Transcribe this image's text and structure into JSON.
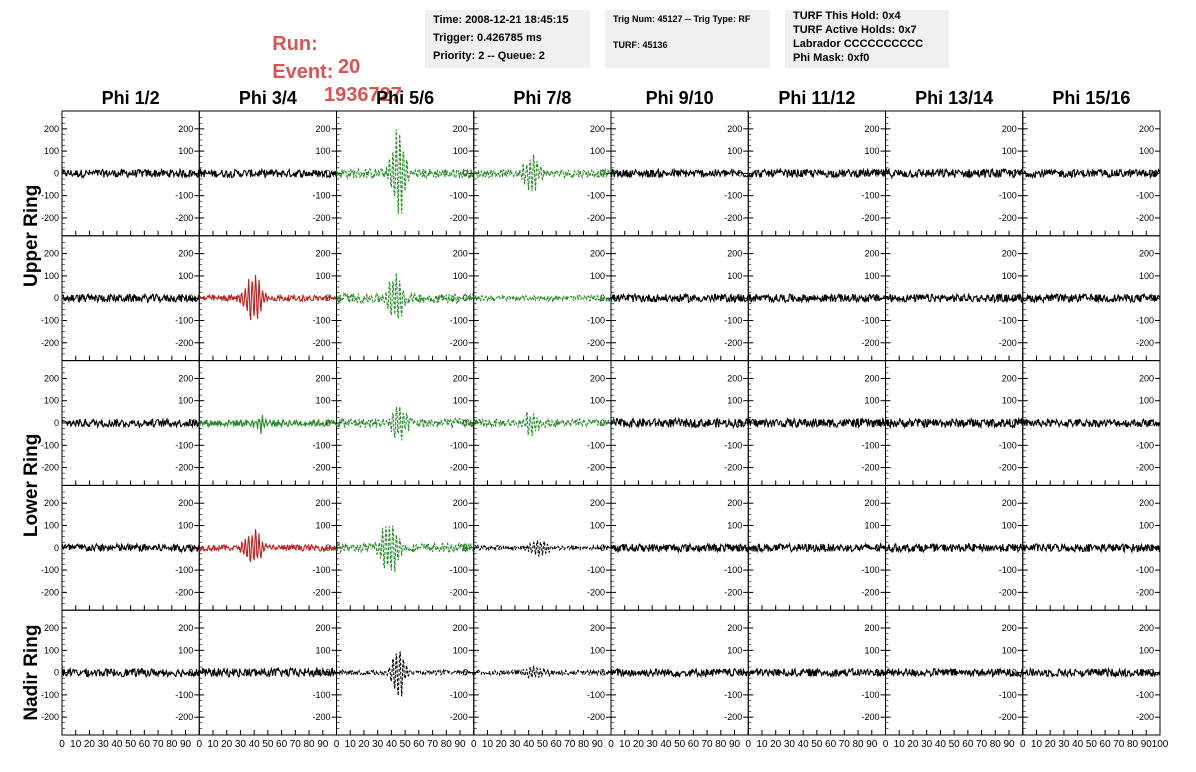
{
  "run": {
    "run_label": "Run:",
    "run_value": "20",
    "event_label": "Event:",
    "event_value": "1936727",
    "color": "#d55555"
  },
  "info_panels": [
    {
      "lines": [
        "Time: 2008-12-21 18:45:15",
        "Trigger: 0.426785 ms",
        "Priority: 2 -- Queue: 2"
      ]
    },
    {
      "lines": [
        "Trig Num: 45127 -- Trig Type: RF",
        "",
        "TURF: 45136"
      ]
    },
    {
      "lines": [
        "TURF This Hold: 0x4",
        "TURF Active Holds: 0x7",
        "Labrador CCCCCCCCCC",
        "Phi Mask: 0xf0"
      ]
    }
  ],
  "chart_data": {
    "type": "line",
    "column_titles": [
      "Phi 1/2",
      "Phi 3/4",
      "Phi 5/6",
      "Phi 7/8",
      "Phi 9/10",
      "Phi 11/12",
      "Phi 13/14",
      "Phi 15/16"
    ],
    "row_groups": [
      {
        "label": "Upper Ring",
        "rows": [
          0,
          1
        ]
      },
      {
        "label": "Lower Ring",
        "rows": [
          2,
          3
        ]
      },
      {
        "label": "Nadir Ring",
        "rows": [
          4
        ]
      }
    ],
    "xlim": [
      0,
      100
    ],
    "ylim": [
      -280,
      280
    ],
    "yticks": [
      200,
      100,
      0,
      -100,
      -200
    ],
    "ytick_labels": [
      "200",
      "100",
      "0",
      "-100",
      "-200"
    ],
    "xticks": [
      0,
      10,
      20,
      30,
      40,
      50,
      60,
      70,
      80,
      90,
      100
    ],
    "xtick_labels": [
      "0",
      "10",
      "20",
      "30",
      "40",
      "50",
      "60",
      "70",
      "80",
      "90",
      "100"
    ],
    "colors": {
      "black": "#000000",
      "green": "#2a8a2a",
      "red": "#b52424"
    },
    "waveforms": [
      [
        {
          "color": "black",
          "amp": 0,
          "center": 50,
          "width": 10,
          "noise": 18
        },
        {
          "color": "black",
          "amp": 0,
          "center": 50,
          "width": 10,
          "noise": 18
        },
        {
          "color": "green",
          "amp": 240,
          "center": 45,
          "width": 6,
          "noise": 22,
          "dashed": true
        },
        {
          "color": "green",
          "amp": 95,
          "center": 42,
          "width": 7,
          "noise": 18,
          "dashed": true
        },
        {
          "color": "black",
          "amp": 0,
          "center": 50,
          "width": 10,
          "noise": 18
        },
        {
          "color": "black",
          "amp": 0,
          "center": 50,
          "width": 10,
          "noise": 18
        },
        {
          "color": "black",
          "amp": 0,
          "center": 50,
          "width": 10,
          "noise": 20
        },
        {
          "color": "black",
          "amp": 0,
          "center": 50,
          "width": 10,
          "noise": 18
        }
      ],
      [
        {
          "color": "black",
          "amp": 0,
          "center": 50,
          "width": 10,
          "noise": 18
        },
        {
          "color": "red",
          "amp": 135,
          "center": 40,
          "width": 7,
          "noise": 14
        },
        {
          "color": "green",
          "amp": 130,
          "center": 43,
          "width": 6,
          "noise": 22,
          "dashed": true
        },
        {
          "color": "green",
          "amp": 0,
          "center": 50,
          "width": 10,
          "noise": 12,
          "dashed": true
        },
        {
          "color": "black",
          "amp": 0,
          "center": 50,
          "width": 10,
          "noise": 18
        },
        {
          "color": "black",
          "amp": 0,
          "center": 50,
          "width": 10,
          "noise": 18
        },
        {
          "color": "black",
          "amp": 0,
          "center": 50,
          "width": 10,
          "noise": 18
        },
        {
          "color": "black",
          "amp": 0,
          "center": 50,
          "width": 10,
          "noise": 18
        }
      ],
      [
        {
          "color": "black",
          "amp": 0,
          "center": 50,
          "width": 10,
          "noise": 18
        },
        {
          "color": "green",
          "amp": 40,
          "center": 45,
          "width": 6,
          "noise": 16
        },
        {
          "color": "green",
          "amp": 110,
          "center": 45,
          "width": 6,
          "noise": 22,
          "dashed": true
        },
        {
          "color": "green",
          "amp": 80,
          "center": 42,
          "width": 6,
          "noise": 18,
          "dashed": true
        },
        {
          "color": "black",
          "amp": 0,
          "center": 50,
          "width": 10,
          "noise": 20
        },
        {
          "color": "black",
          "amp": 0,
          "center": 50,
          "width": 10,
          "noise": 20
        },
        {
          "color": "black",
          "amp": 0,
          "center": 50,
          "width": 10,
          "noise": 20
        },
        {
          "color": "black",
          "amp": 0,
          "center": 50,
          "width": 10,
          "noise": 18
        }
      ],
      [
        {
          "color": "black",
          "amp": 0,
          "center": 50,
          "width": 10,
          "noise": 18
        },
        {
          "color": "red",
          "amp": 110,
          "center": 40,
          "width": 7,
          "noise": 14
        },
        {
          "color": "green",
          "amp": 170,
          "center": 38,
          "width": 7,
          "noise": 20,
          "dashed": true
        },
        {
          "color": "black",
          "amp": 45,
          "center": 48,
          "width": 8,
          "noise": 10,
          "dashed": true
        },
        {
          "color": "black",
          "amp": 0,
          "center": 50,
          "width": 10,
          "noise": 18
        },
        {
          "color": "black",
          "amp": 0,
          "center": 50,
          "width": 10,
          "noise": 18
        },
        {
          "color": "black",
          "amp": 0,
          "center": 50,
          "width": 10,
          "noise": 18
        },
        {
          "color": "black",
          "amp": 0,
          "center": 50,
          "width": 10,
          "noise": 18
        }
      ],
      [
        {
          "color": "black",
          "amp": 0,
          "center": 50,
          "width": 10,
          "noise": 18
        },
        {
          "color": "black",
          "amp": 0,
          "center": 50,
          "width": 10,
          "noise": 20
        },
        {
          "color": "black",
          "amp": 150,
          "center": 45,
          "width": 5,
          "noise": 10,
          "dashed": true
        },
        {
          "color": "black",
          "amp": 40,
          "center": 45,
          "width": 8,
          "noise": 10,
          "dashed": true
        },
        {
          "color": "black",
          "amp": 0,
          "center": 50,
          "width": 10,
          "noise": 18
        },
        {
          "color": "black",
          "amp": 0,
          "center": 50,
          "width": 10,
          "noise": 18
        },
        {
          "color": "black",
          "amp": 0,
          "center": 50,
          "width": 10,
          "noise": 18
        },
        {
          "color": "black",
          "amp": 0,
          "center": 50,
          "width": 10,
          "noise": 18
        }
      ]
    ]
  }
}
